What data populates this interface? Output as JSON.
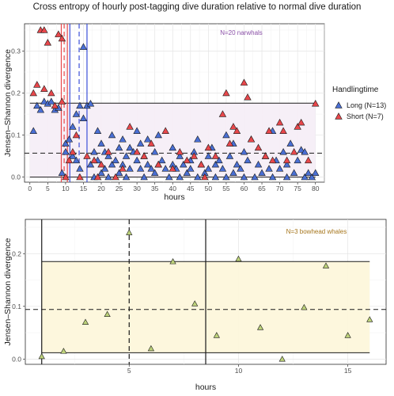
{
  "figure": {
    "title": "Cross entropy of hourly post-tagging dive duration relative to normal dive duration"
  },
  "colors": {
    "long": "#4a6fd4",
    "short": "#e8474b",
    "bowhead": "#bdd27a",
    "top_band": "#f6eef7",
    "bottom_band": "#fdf7db",
    "top_annot": "#8a4fa7",
    "bottom_annot": "#a6761d",
    "red_line": "#e8474b",
    "blue_line": "#3b4fd8"
  },
  "chart_data": [
    {
      "type": "scatter",
      "annotation": "N=20 narwhals",
      "xlabel": "hours",
      "ylabel": "Jensen–Shannon divergence",
      "xlim": [
        -1.5,
        82.5
      ],
      "ylim": [
        -0.012,
        0.365
      ],
      "xticks": [
        0,
        5,
        10,
        15,
        20,
        25,
        30,
        35,
        40,
        45,
        50,
        55,
        60,
        65,
        70,
        75,
        80
      ],
      "yticks": [
        0.0,
        0.1,
        0.2,
        0.3
      ],
      "ytick_labels": [
        "0.0",
        "0.1",
        "0.2",
        "0.3"
      ],
      "grid": true,
      "legend": {
        "title": "Handlingtime",
        "position": "right",
        "entries": [
          {
            "label": "Long (N=13)",
            "key": "long"
          },
          {
            "label": "Short (N=7)",
            "key": "short"
          }
        ]
      },
      "band": {
        "low": 0.0,
        "high": 0.176
      },
      "hlines": [
        {
          "y": 0.176,
          "style": "solid"
        },
        {
          "y": 0.057,
          "style": "dashed"
        },
        {
          "y": 0.0,
          "style": "solid"
        }
      ],
      "vlines": [
        {
          "x": 8.8,
          "color": "red_line",
          "style": "solid"
        },
        {
          "x": 9.6,
          "color": "red_line",
          "style": "dashed"
        },
        {
          "x": 10.5,
          "color": "red_line",
          "style": "solid"
        },
        {
          "x": 11.2,
          "color": "blue_line",
          "style": "solid"
        },
        {
          "x": 13.8,
          "color": "blue_line",
          "style": "dashed"
        },
        {
          "x": 16.0,
          "color": "blue_line",
          "style": "solid"
        }
      ],
      "series": [
        {
          "name": "Long (N=13)",
          "key": "long",
          "points": [
            [
              1,
              0.11
            ],
            [
              2,
              0.17
            ],
            [
              3,
              0.16
            ],
            [
              4,
              0.18
            ],
            [
              5,
              0.175
            ],
            [
              6,
              0.18
            ],
            [
              7,
              0.16
            ],
            [
              8,
              0.165
            ],
            [
              9,
              0.01
            ],
            [
              10,
              0.06
            ],
            [
              10,
              0.08
            ],
            [
              11,
              0.09
            ],
            [
              12,
              0.05
            ],
            [
              12,
              0.12
            ],
            [
              13,
              0.15
            ],
            [
              13,
              0.04
            ],
            [
              14,
              0.17
            ],
            [
              14,
              0.02
            ],
            [
              15,
              0.31
            ],
            [
              15,
              0.14
            ],
            [
              16,
              0.17
            ],
            [
              17,
              0.175
            ],
            [
              17,
              0.03
            ],
            [
              18,
              0.06
            ],
            [
              18,
              0.0
            ],
            [
              19,
              0.04
            ],
            [
              19,
              0.11
            ],
            [
              20,
              0.08
            ],
            [
              20,
              0.01
            ],
            [
              21,
              0.02
            ],
            [
              21,
              0.06
            ],
            [
              22,
              0.05
            ],
            [
              22,
              0.0
            ],
            [
              23,
              0.03
            ],
            [
              23,
              0.1
            ],
            [
              24,
              0.04
            ],
            [
              25,
              0.07
            ],
            [
              25,
              0.01
            ],
            [
              26,
              0.03
            ],
            [
              26,
              0.09
            ],
            [
              27,
              0.05
            ],
            [
              27,
              0.0
            ],
            [
              28,
              0.02
            ],
            [
              28,
              0.07
            ],
            [
              29,
              0.06
            ],
            [
              30,
              0.04
            ],
            [
              30,
              0.11
            ],
            [
              31,
              0.02
            ],
            [
              31,
              0.08
            ],
            [
              32,
              0.05
            ],
            [
              32,
              0.0
            ],
            [
              33,
              0.03
            ],
            [
              33,
              0.09
            ],
            [
              34,
              0.02
            ],
            [
              35,
              0.06
            ],
            [
              35,
              0.01
            ],
            [
              36,
              0.1
            ],
            [
              36,
              0.03
            ],
            [
              37,
              0.04
            ],
            [
              38,
              0.02
            ],
            [
              39,
              0.0
            ],
            [
              40,
              0.03
            ],
            [
              40,
              0.07
            ],
            [
              41,
              0.02
            ],
            [
              42,
              0.05
            ],
            [
              42,
              0.0
            ],
            [
              43,
              0.03
            ],
            [
              44,
              0.01
            ],
            [
              45,
              0.04
            ],
            [
              45,
              0.02
            ],
            [
              46,
              0.06
            ],
            [
              47,
              0.0
            ],
            [
              47,
              0.09
            ],
            [
              48,
              0.03
            ],
            [
              49,
              0.01
            ],
            [
              50,
              0.05
            ],
            [
              50,
              0.02
            ],
            [
              51,
              0.07
            ],
            [
              52,
              0.0
            ],
            [
              52,
              0.03
            ],
            [
              53,
              0.04
            ],
            [
              54,
              0.02
            ],
            [
              55,
              0.1
            ],
            [
              55,
              0.0
            ],
            [
              56,
              0.05
            ],
            [
              57,
              0.08
            ],
            [
              57,
              0.01
            ],
            [
              58,
              0.03
            ],
            [
              59,
              0.02
            ],
            [
              60,
              0.06
            ],
            [
              60,
              0.0
            ],
            [
              61,
              0.04
            ],
            [
              62,
              0.09
            ],
            [
              63,
              0.0
            ],
            [
              64,
              0.03
            ],
            [
              65,
              0.01
            ],
            [
              66,
              0.05
            ],
            [
              67,
              0.02
            ],
            [
              68,
              0.11
            ],
            [
              68,
              0.0
            ],
            [
              69,
              0.04
            ],
            [
              70,
              0.02
            ],
            [
              71,
              0.06
            ],
            [
              72,
              0.0
            ],
            [
              72,
              0.03
            ],
            [
              73,
              0.08
            ],
            [
              74,
              0.01
            ],
            [
              75,
              0.04
            ],
            [
              76,
              0.065
            ],
            [
              77,
              0.06
            ],
            [
              77,
              0.0
            ],
            [
              78,
              0.01
            ],
            [
              79,
              0.0
            ],
            [
              80,
              0.01
            ]
          ]
        },
        {
          "name": "Short (N=7)",
          "key": "short",
          "points": [
            [
              1,
              0.2
            ],
            [
              2,
              0.22
            ],
            [
              3,
              0.35
            ],
            [
              4,
              0.35
            ],
            [
              4,
              0.21
            ],
            [
              5,
              0.32
            ],
            [
              6,
              0.2
            ],
            [
              7,
              0.17
            ],
            [
              8,
              0.34
            ],
            [
              9,
              0.33
            ],
            [
              9,
              0.18
            ],
            [
              10,
              0.0
            ],
            [
              11,
              0.04
            ],
            [
              12,
              0.06
            ],
            [
              13,
              0.1
            ],
            [
              14,
              0.0
            ],
            [
              16,
              0.05
            ],
            [
              18,
              0.04
            ],
            [
              19,
              0.0
            ],
            [
              20,
              0.03
            ],
            [
              22,
              0.06
            ],
            [
              24,
              0.0
            ],
            [
              26,
              0.02
            ],
            [
              28,
              0.12
            ],
            [
              30,
              0.06
            ],
            [
              32,
              0.05
            ],
            [
              34,
              0.08
            ],
            [
              36,
              0.03
            ],
            [
              38,
              0.11
            ],
            [
              40,
              0.02
            ],
            [
              42,
              0.06
            ],
            [
              44,
              0.04
            ],
            [
              46,
              0.05
            ],
            [
              48,
              0.03
            ],
            [
              49,
              0.0
            ],
            [
              50,
              0.07
            ],
            [
              52,
              0.05
            ],
            [
              54,
              0.15
            ],
            [
              55,
              0.2
            ],
            [
              56,
              0.08
            ],
            [
              57,
              0.12
            ],
            [
              58,
              0.11
            ],
            [
              60,
              0.225
            ],
            [
              61,
              0.19
            ],
            [
              62,
              0.09
            ],
            [
              64,
              0.07
            ],
            [
              66,
              0.05
            ],
            [
              67,
              0.11
            ],
            [
              68,
              0.04
            ],
            [
              70,
              0.13
            ],
            [
              71,
              0.11
            ],
            [
              72,
              0.04
            ],
            [
              74,
              0.06
            ],
            [
              75,
              0.12
            ],
            [
              76,
              0.13
            ],
            [
              78,
              0.04
            ],
            [
              80,
              0.175
            ]
          ]
        }
      ]
    },
    {
      "type": "scatter",
      "annotation": "N=3 bowhead whales",
      "xlabel": "hours",
      "ylabel": "Jensen–Shannon divergence",
      "xlim": [
        0.25,
        16.75
      ],
      "ylim": [
        -0.01,
        0.265
      ],
      "xticks": [
        5,
        10,
        15
      ],
      "yticks": [
        0.0,
        0.1,
        0.2
      ],
      "ytick_labels": [
        "0.0",
        "0.1",
        "0.2"
      ],
      "grid": true,
      "band": {
        "low": 0.012,
        "high": 0.185
      },
      "hlines": [
        {
          "y": 0.185,
          "style": "solid"
        },
        {
          "y": 0.094,
          "style": "dashed"
        },
        {
          "y": 0.012,
          "style": "solid"
        }
      ],
      "vlines": [
        {
          "x": 1,
          "color": "black",
          "style": "solid"
        },
        {
          "x": 5,
          "color": "black",
          "style": "dashed"
        },
        {
          "x": 8.5,
          "color": "black",
          "style": "solid"
        }
      ],
      "series": [
        {
          "key": "bowhead",
          "points": [
            [
              1,
              0.005
            ],
            [
              2,
              0.015
            ],
            [
              3,
              0.07
            ],
            [
              4,
              0.085
            ],
            [
              5,
              0.24
            ],
            [
              6,
              0.02
            ],
            [
              7,
              0.185
            ],
            [
              8,
              0.105
            ],
            [
              9,
              0.045
            ],
            [
              10,
              0.19
            ],
            [
              11,
              0.06
            ],
            [
              12,
              0.0
            ],
            [
              13,
              0.098
            ],
            [
              14,
              0.177
            ],
            [
              15,
              0.045
            ],
            [
              16,
              0.075
            ]
          ]
        }
      ]
    }
  ]
}
